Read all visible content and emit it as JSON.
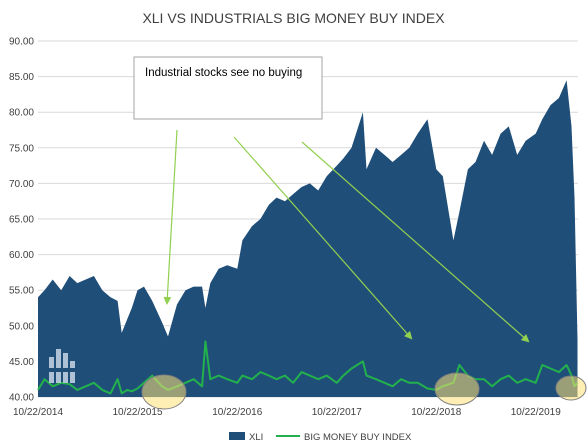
{
  "chart_data": {
    "type": "area",
    "title": "XLI VS INDUSTRIALS BIG MONEY BUY INDEX",
    "xlabel": "",
    "ylabel": "",
    "ylim": [
      40,
      90
    ],
    "y_ticks": [
      "40.00",
      "45.00",
      "50.00",
      "55.00",
      "60.00",
      "65.00",
      "70.00",
      "75.00",
      "80.00",
      "85.00",
      "90.00"
    ],
    "x_ticks": [
      "10/22/2014",
      "10/22/2015",
      "10/22/2016",
      "10/22/2017",
      "10/22/2018",
      "10/22/2019"
    ],
    "grid": true,
    "legend_position": "bottom",
    "x": [
      "2014-10-22",
      "2014-11-15",
      "2014-12-15",
      "2015-01-15",
      "2015-02-15",
      "2015-03-15",
      "2015-04-15",
      "2015-05-15",
      "2015-06-15",
      "2015-07-15",
      "2015-08-10",
      "2015-08-25",
      "2015-09-15",
      "2015-10-01",
      "2015-10-22",
      "2015-11-15",
      "2015-12-15",
      "2016-01-20",
      "2016-02-11",
      "2016-03-15",
      "2016-04-15",
      "2016-05-15",
      "2016-06-15",
      "2016-06-27",
      "2016-07-15",
      "2016-08-15",
      "2016-09-15",
      "2016-10-22",
      "2016-11-10",
      "2016-12-15",
      "2017-01-15",
      "2017-02-15",
      "2017-03-15",
      "2017-04-15",
      "2017-05-15",
      "2017-06-15",
      "2017-07-15",
      "2017-08-15",
      "2017-09-15",
      "2017-10-22",
      "2017-11-15",
      "2017-12-15",
      "2018-01-26",
      "2018-02-08",
      "2018-03-15",
      "2018-04-15",
      "2018-05-15",
      "2018-06-15",
      "2018-07-15",
      "2018-08-15",
      "2018-09-20",
      "2018-10-22",
      "2018-11-15",
      "2018-12-24",
      "2019-01-15",
      "2019-02-15",
      "2019-03-15",
      "2019-04-15",
      "2019-05-15",
      "2019-06-15",
      "2019-07-15",
      "2019-08-15",
      "2019-09-15",
      "2019-10-22",
      "2019-11-15",
      "2019-12-15",
      "2020-01-15",
      "2020-02-12",
      "2020-03-01",
      "2020-03-12",
      "2020-03-23"
    ],
    "series": [
      {
        "name": "XLI",
        "color": "#1f4e79",
        "values": [
          54,
          55,
          56.5,
          55,
          57,
          56,
          56.5,
          57,
          55,
          54,
          53.5,
          49,
          51,
          52.5,
          55,
          55.5,
          53.5,
          50.5,
          48.5,
          53,
          55,
          55.5,
          55.5,
          52.5,
          56,
          58,
          58.5,
          58,
          62,
          64,
          65,
          67,
          68,
          67.5,
          68.5,
          69.5,
          70,
          69,
          71,
          72.5,
          73.5,
          75,
          80,
          72,
          75,
          74,
          73,
          74,
          75,
          77,
          79,
          72,
          71,
          62,
          66,
          72,
          73,
          76,
          74,
          77,
          78,
          74,
          76,
          77,
          79,
          81,
          82,
          84.5,
          78,
          68,
          48
        ]
      },
      {
        "name": "BIG MONEY BUY INDEX",
        "color": "#22b14c",
        "values": [
          41,
          42.5,
          41.5,
          42,
          41.8,
          41,
          41.5,
          42,
          41,
          40.5,
          42.5,
          40.5,
          41,
          40.8,
          41.2,
          42,
          43,
          41.5,
          41,
          41.5,
          42,
          42.5,
          41.5,
          47.8,
          42.5,
          43,
          42.5,
          42,
          43,
          42.5,
          43.5,
          43,
          42.5,
          43,
          42,
          43.5,
          43,
          42.5,
          43,
          42,
          43,
          44,
          45,
          43,
          42.5,
          42,
          41.5,
          42.5,
          42,
          42,
          41.2,
          41,
          41.5,
          42,
          44.5,
          43,
          42.5,
          42.5,
          41.5,
          42.5,
          43,
          42,
          42.5,
          42,
          44.5,
          44,
          43.5,
          44.5,
          43,
          41.5,
          42
        ]
      }
    ],
    "annotations": {
      "callout": "Industrial stocks see no buying"
    }
  }
}
